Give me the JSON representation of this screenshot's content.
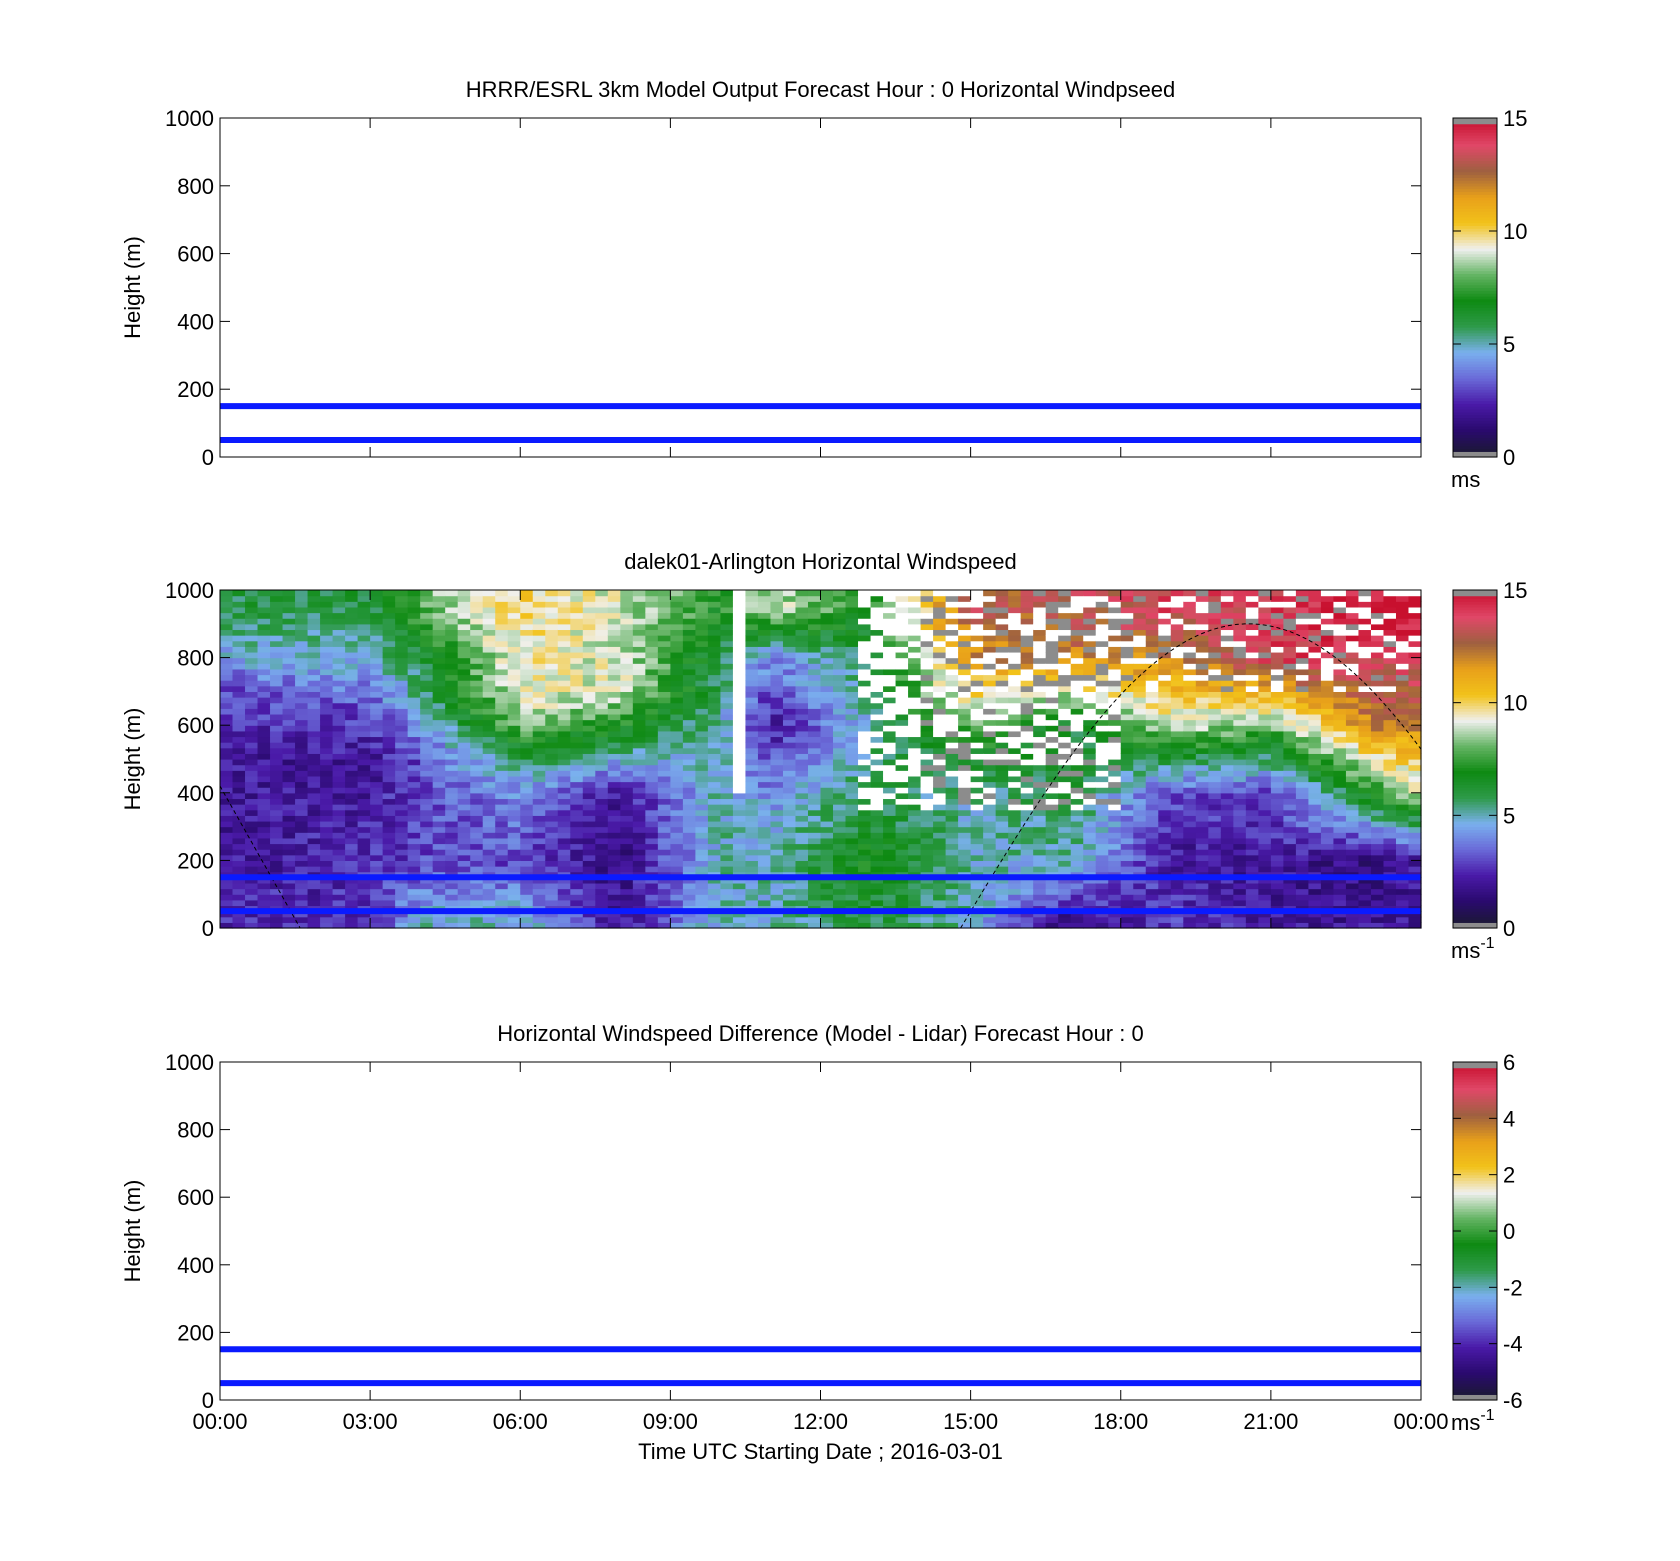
{
  "chart_data": [
    {
      "type": "heatmap",
      "title": "HRRR/ESRL 3km Model Output   Forecast Hour : 0 Horizontal Windpseed",
      "ylabel": "Height (m)",
      "xlabel": "",
      "ylim": [
        0,
        1000
      ],
      "xlim_hours": [
        0,
        24
      ],
      "y_ticks": [
        "0",
        "200",
        "400",
        "600",
        "800",
        "1000"
      ],
      "x_ticks": [],
      "colorbar": {
        "min": 0,
        "max": 15,
        "ticks": [
          "0",
          "5",
          "10",
          "15"
        ],
        "unit": "ms",
        "unit_sup": ""
      },
      "reference_lines": [
        {
          "y": 50,
          "color": "#0a1aff"
        },
        {
          "y": 150,
          "color": "#0a1aff"
        }
      ],
      "has_field": false
    },
    {
      "type": "heatmap",
      "title": "dalek01-Arlington  Horizontal Windspeed",
      "ylabel": "Height (m)",
      "xlabel": "",
      "ylim": [
        0,
        1000
      ],
      "xlim_hours": [
        0,
        24
      ],
      "y_ticks": [
        "0",
        "200",
        "400",
        "600",
        "800",
        "1000"
      ],
      "x_ticks": [],
      "colorbar": {
        "min": 0,
        "max": 15,
        "ticks": [
          "0",
          "5",
          "10",
          "15"
        ],
        "unit": "ms",
        "unit_sup": "-1"
      },
      "reference_lines": [
        {
          "y": 50,
          "color": "#0a1aff"
        },
        {
          "y": 150,
          "color": "#0a1aff"
        }
      ],
      "has_field": true,
      "field": {
        "description_points": [
          {
            "t": 0,
            "h": [
              [
                0,
                2.5
              ],
              [
                200,
                2
              ],
              [
                500,
                2
              ],
              [
                700,
                3
              ],
              [
                850,
                5
              ],
              [
                950,
                6
              ]
            ]
          },
          {
            "t": 3,
            "h": [
              [
                0,
                2.5
              ],
              [
                200,
                2.5
              ],
              [
                500,
                2
              ],
              [
                650,
                3
              ],
              [
                800,
                5
              ],
              [
                950,
                6
              ]
            ]
          },
          {
            "t": 4,
            "h": [
              [
                0,
                5
              ],
              [
                200,
                3
              ],
              [
                500,
                3
              ],
              [
                650,
                5
              ],
              [
                800,
                6
              ],
              [
                950,
                8
              ]
            ]
          },
          {
            "t": 6,
            "h": [
              [
                0,
                5
              ],
              [
                200,
                3
              ],
              [
                400,
                4
              ],
              [
                500,
                6
              ],
              [
                650,
                9
              ],
              [
                950,
                10
              ]
            ]
          },
          {
            "t": 8,
            "h": [
              [
                0,
                2
              ],
              [
                200,
                1.5
              ],
              [
                400,
                2
              ],
              [
                550,
                6
              ],
              [
                700,
                9
              ],
              [
                950,
                9
              ]
            ]
          },
          {
            "t": 10,
            "h": [
              [
                0,
                5
              ],
              [
                200,
                5
              ],
              [
                400,
                5
              ],
              [
                600,
                5
              ],
              [
                800,
                6
              ],
              [
                950,
                7
              ]
            ]
          },
          {
            "t": 11,
            "h": [
              [
                0,
                5
              ],
              [
                200,
                5
              ],
              [
                400,
                4
              ],
              [
                600,
                2
              ],
              [
                800,
                4
              ],
              [
                950,
                9
              ]
            ]
          },
          {
            "t": 13,
            "h": [
              [
                0,
                6
              ],
              [
                200,
                7
              ],
              [
                400,
                6
              ],
              [
                600,
                5
              ],
              [
                800,
                6
              ],
              [
                950,
                7
              ]
            ]
          },
          {
            "t": 15,
            "h": [
              [
                0,
                5
              ],
              [
                200,
                5
              ],
              [
                400,
                5
              ],
              [
                600,
                8
              ],
              [
                800,
                12
              ],
              [
                950,
                13
              ]
            ]
          },
          {
            "t": 17,
            "h": [
              [
                0,
                1
              ],
              [
                200,
                5
              ],
              [
                400,
                6
              ],
              [
                600,
                6
              ],
              [
                800,
                12
              ],
              [
                950,
                13
              ]
            ]
          },
          {
            "t": 19,
            "h": [
              [
                0,
                3
              ],
              [
                200,
                2
              ],
              [
                400,
                3
              ],
              [
                600,
                9
              ],
              [
                800,
                12
              ],
              [
                950,
                14
              ]
            ]
          },
          {
            "t": 21,
            "h": [
              [
                0,
                2
              ],
              [
                200,
                2
              ],
              [
                400,
                3
              ],
              [
                600,
                8
              ],
              [
                800,
                14
              ],
              [
                950,
                14
              ]
            ]
          },
          {
            "t": 23,
            "h": [
              [
                0,
                2
              ],
              [
                200,
                1.5
              ],
              [
                400,
                7
              ],
              [
                600,
                12
              ],
              [
                800,
                14
              ],
              [
                950,
                15
              ]
            ]
          },
          {
            "t": 24,
            "h": [
              [
                0,
                2
              ],
              [
                200,
                2
              ],
              [
                400,
                9
              ],
              [
                600,
                12
              ],
              [
                800,
                14
              ],
              [
                950,
                15
              ]
            ]
          }
        ]
      }
    },
    {
      "type": "heatmap",
      "title": "Horizontal Windspeed Difference (Model - Lidar) Forecast Hour : 0",
      "ylabel": "Height (m)",
      "xlabel": "Time UTC  Starting Date ; 2016-03-01",
      "ylim": [
        0,
        1000
      ],
      "xlim_hours": [
        0,
        24
      ],
      "y_ticks": [
        "0",
        "200",
        "400",
        "600",
        "800",
        "1000"
      ],
      "x_ticks": [
        "00:00",
        "03:00",
        "06:00",
        "09:00",
        "12:00",
        "15:00",
        "18:00",
        "21:00",
        "00:00"
      ],
      "colorbar": {
        "min": -6,
        "max": 6,
        "ticks": [
          "-6",
          "-4",
          "-2",
          "0",
          "2",
          "4",
          "6"
        ],
        "unit": "ms",
        "unit_sup": "-1"
      },
      "reference_lines": [
        {
          "y": 50,
          "color": "#0a1aff"
        },
        {
          "y": 150,
          "color": "#0a1aff"
        }
      ],
      "has_field": false
    }
  ],
  "colormap": [
    "#1a1a2e",
    "#2a0a6e",
    "#4a1aa8",
    "#6a6ad8",
    "#7ab0ee",
    "#2e9a4a",
    "#0e8a12",
    "#64b464",
    "#f0f0ee",
    "#f2c21a",
    "#e8a01a",
    "#9e6040",
    "#e04868",
    "#c8102e"
  ]
}
